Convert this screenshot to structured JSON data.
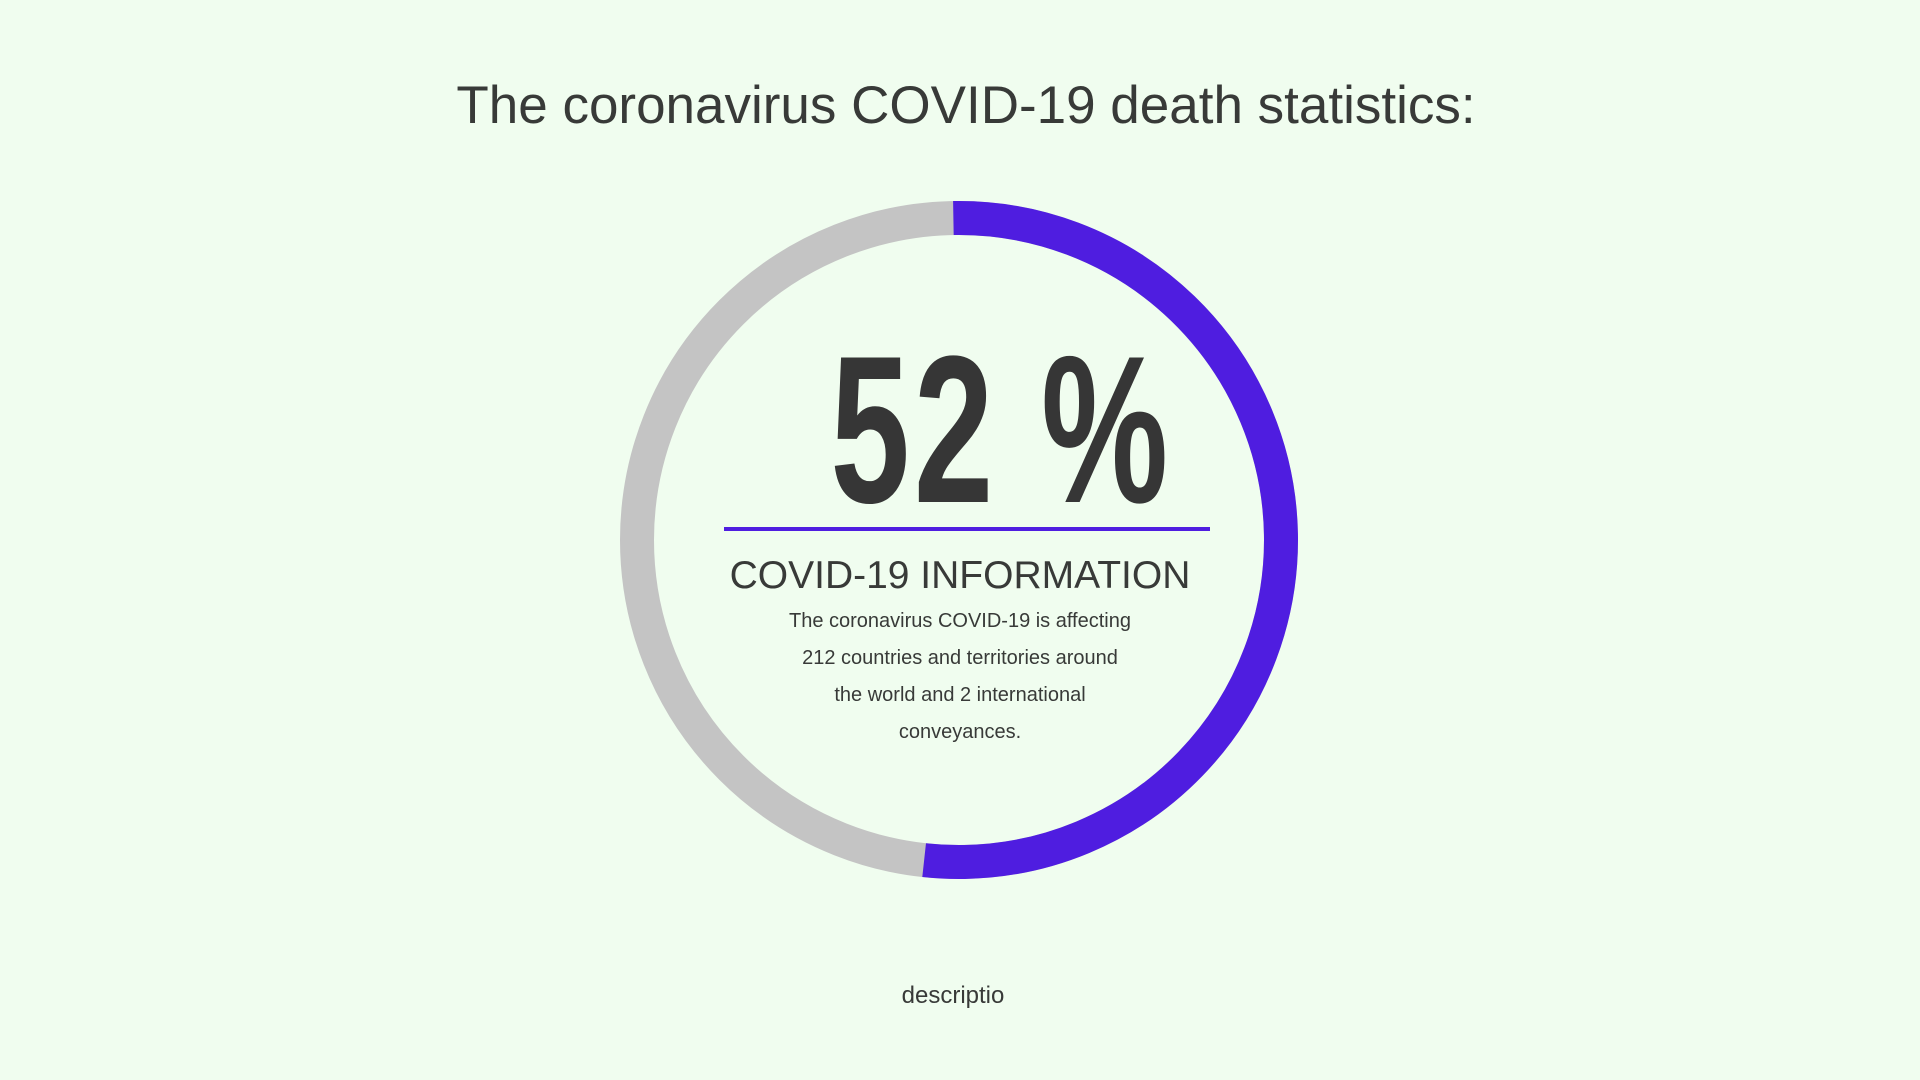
{
  "title": "The coronavirus COVID-19 death statistics:",
  "gauge": {
    "percent": 52,
    "label": "52 %",
    "colors": {
      "fill": "#4f1de0",
      "track": "#c4c4c4"
    }
  },
  "info": {
    "heading": "COVID-19 INFORMATION",
    "lines": [
      "The coronavirus COVID-19 is affecting",
      "212 countries and territories around",
      "the world and 2 international",
      "conveyances."
    ]
  },
  "caption": "descriptio"
}
